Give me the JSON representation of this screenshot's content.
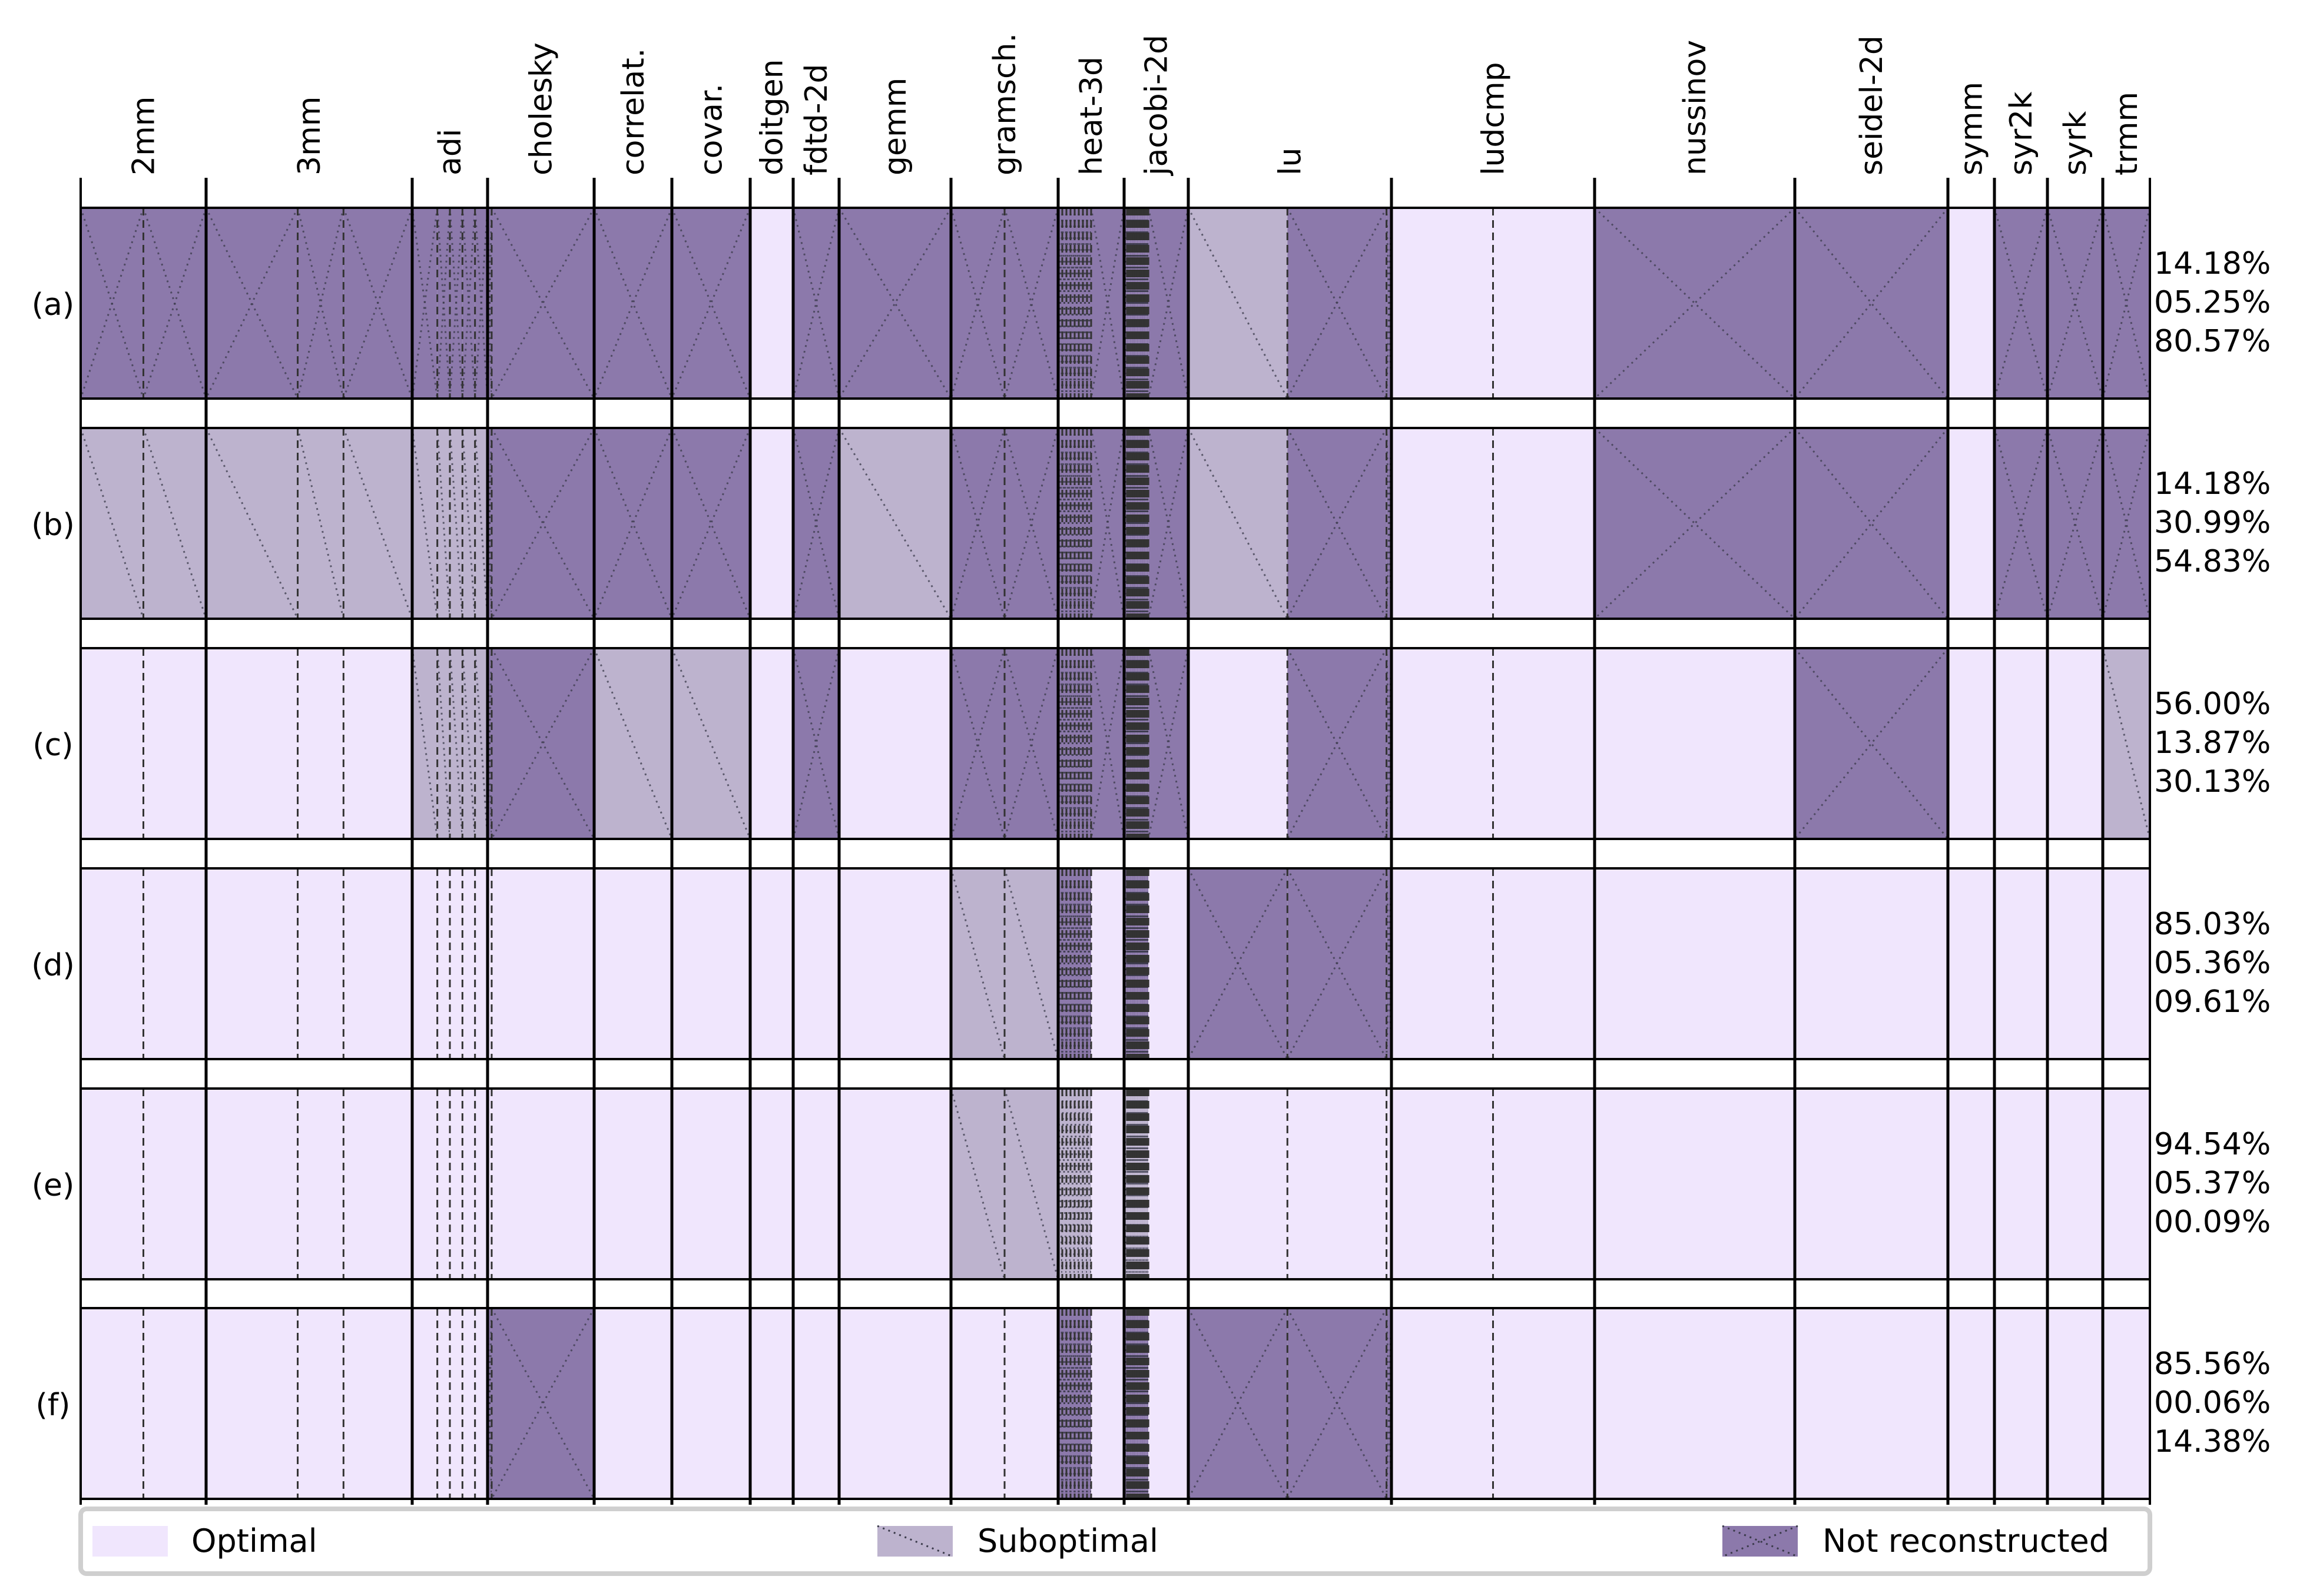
{
  "chart_data": {
    "type": "heatmap",
    "subtype": "segmented-categorical-strips",
    "columns": [
      {
        "label": "2mm",
        "widths": [
          1,
          1
        ]
      },
      {
        "label": "3mm",
        "widths": [
          4,
          2,
          3
        ]
      },
      {
        "label": "adi",
        "widths": [
          2,
          1,
          1,
          1,
          1
        ]
      },
      {
        "label": "cholesky",
        "widths": [
          1,
          25
        ]
      },
      {
        "label": "correlat.",
        "widths": [
          1
        ]
      },
      {
        "label": "covar.",
        "widths": [
          1
        ]
      },
      {
        "label": "doitgen",
        "widths": [
          1
        ]
      },
      {
        "label": "fdtd-2d",
        "widths": [
          1
        ]
      },
      {
        "label": "gemm",
        "widths": [
          1
        ]
      },
      {
        "label": "gramsch.",
        "widths": [
          1,
          1
        ]
      },
      {
        "label": "heat-3d",
        "widths": [
          1,
          1,
          1,
          1,
          1,
          1,
          1,
          1,
          8
        ]
      },
      {
        "label": "jacobi-2d",
        "widths": [
          2,
          1,
          1,
          1,
          1,
          1,
          1,
          1,
          1,
          1,
          1,
          1,
          1,
          1,
          1,
          1,
          28
        ]
      },
      {
        "label": "lu",
        "widths": [
          1,
          1,
          0.05
        ]
      },
      {
        "label": "ludcmp",
        "widths": [
          1,
          1
        ]
      },
      {
        "label": "nussinov",
        "widths": [
          1
        ]
      },
      {
        "label": "seidel-2d",
        "widths": [
          1
        ]
      },
      {
        "label": "symm",
        "widths": [
          1
        ]
      },
      {
        "label": "syr2k",
        "widths": [
          1
        ]
      },
      {
        "label": "syrk",
        "widths": [
          1
        ]
      },
      {
        "label": "trmm",
        "widths": [
          1
        ]
      }
    ],
    "rows": [
      {
        "label": "(a)",
        "percentages": [
          "14.18%",
          "05.25%",
          "80.57%"
        ],
        "states": [
          [
            "N",
            "N"
          ],
          [
            "N",
            "N",
            "N"
          ],
          [
            "N",
            "N",
            "N",
            "N",
            "N"
          ],
          [
            "N",
            "N"
          ],
          [
            "N"
          ],
          [
            "N"
          ],
          [
            "O"
          ],
          [
            "N"
          ],
          [
            "N"
          ],
          [
            "N",
            "N"
          ],
          [
            "N",
            "N",
            "N",
            "N",
            "N",
            "N",
            "N",
            "N",
            "N"
          ],
          [
            "N",
            "N",
            "N",
            "N",
            "N",
            "N",
            "N",
            "N",
            "N",
            "N",
            "N",
            "N",
            "N",
            "N",
            "N",
            "N",
            "N"
          ],
          [
            "S",
            "N",
            "N"
          ],
          [
            "O",
            "O"
          ],
          [
            "N"
          ],
          [
            "N"
          ],
          [
            "O"
          ],
          [
            "N"
          ],
          [
            "N"
          ],
          [
            "N"
          ]
        ]
      },
      {
        "label": "(b)",
        "percentages": [
          "14.18%",
          "30.99%",
          "54.83%"
        ],
        "states": [
          [
            "S",
            "S"
          ],
          [
            "S",
            "S",
            "S"
          ],
          [
            "S",
            "S",
            "S",
            "S",
            "S"
          ],
          [
            "N",
            "N"
          ],
          [
            "N"
          ],
          [
            "N"
          ],
          [
            "O"
          ],
          [
            "N"
          ],
          [
            "S"
          ],
          [
            "N",
            "N"
          ],
          [
            "N",
            "N",
            "N",
            "N",
            "N",
            "N",
            "N",
            "N",
            "N"
          ],
          [
            "N",
            "N",
            "N",
            "N",
            "N",
            "N",
            "N",
            "N",
            "N",
            "N",
            "N",
            "N",
            "N",
            "N",
            "N",
            "N",
            "N"
          ],
          [
            "S",
            "N",
            "N"
          ],
          [
            "O",
            "O"
          ],
          [
            "N"
          ],
          [
            "N"
          ],
          [
            "O"
          ],
          [
            "N"
          ],
          [
            "N"
          ],
          [
            "N"
          ]
        ]
      },
      {
        "label": "(c)",
        "percentages": [
          "56.00%",
          "13.87%",
          "30.13%"
        ],
        "states": [
          [
            "O",
            "O"
          ],
          [
            "O",
            "O",
            "O"
          ],
          [
            "S",
            "S",
            "S",
            "S",
            "S"
          ],
          [
            "N",
            "N"
          ],
          [
            "S"
          ],
          [
            "S"
          ],
          [
            "O"
          ],
          [
            "N"
          ],
          [
            "O"
          ],
          [
            "N",
            "N"
          ],
          [
            "N",
            "N",
            "N",
            "N",
            "N",
            "N",
            "N",
            "N",
            "N"
          ],
          [
            "N",
            "N",
            "N",
            "N",
            "N",
            "N",
            "N",
            "N",
            "N",
            "N",
            "N",
            "N",
            "N",
            "N",
            "N",
            "N",
            "N"
          ],
          [
            "O",
            "N",
            "N"
          ],
          [
            "O",
            "O"
          ],
          [
            "O"
          ],
          [
            "N"
          ],
          [
            "O"
          ],
          [
            "O"
          ],
          [
            "O"
          ],
          [
            "S"
          ]
        ]
      },
      {
        "label": "(d)",
        "percentages": [
          "85.03%",
          "05.36%",
          "09.61%"
        ],
        "states": [
          [
            "O",
            "O"
          ],
          [
            "O",
            "O",
            "O"
          ],
          [
            "O",
            "O",
            "O",
            "O",
            "O"
          ],
          [
            "O",
            "O"
          ],
          [
            "O"
          ],
          [
            "O"
          ],
          [
            "O"
          ],
          [
            "O"
          ],
          [
            "O"
          ],
          [
            "S",
            "S"
          ],
          [
            "N",
            "N",
            "N",
            "N",
            "N",
            "N",
            "N",
            "N",
            "O"
          ],
          [
            "N",
            "N",
            "N",
            "N",
            "N",
            "N",
            "N",
            "N",
            "N",
            "N",
            "N",
            "N",
            "N",
            "N",
            "N",
            "N",
            "O"
          ],
          [
            "N",
            "N",
            "N"
          ],
          [
            "O",
            "O"
          ],
          [
            "O"
          ],
          [
            "O"
          ],
          [
            "O"
          ],
          [
            "O"
          ],
          [
            "O"
          ],
          [
            "O"
          ]
        ]
      },
      {
        "label": "(e)",
        "percentages": [
          "94.54%",
          "05.37%",
          "00.09%"
        ],
        "states": [
          [
            "O",
            "O"
          ],
          [
            "O",
            "O",
            "O"
          ],
          [
            "O",
            "O",
            "O",
            "O",
            "O"
          ],
          [
            "O",
            "O"
          ],
          [
            "O"
          ],
          [
            "O"
          ],
          [
            "O"
          ],
          [
            "O"
          ],
          [
            "O"
          ],
          [
            "S",
            "S"
          ],
          [
            "S",
            "S",
            "S",
            "S",
            "S",
            "S",
            "S",
            "S",
            "O"
          ],
          [
            "S",
            "S",
            "S",
            "S",
            "S",
            "S",
            "S",
            "S",
            "S",
            "S",
            "S",
            "S",
            "S",
            "S",
            "S",
            "S",
            "O"
          ],
          [
            "O",
            "O",
            "O"
          ],
          [
            "O",
            "O"
          ],
          [
            "O"
          ],
          [
            "O"
          ],
          [
            "O"
          ],
          [
            "O"
          ],
          [
            "O"
          ],
          [
            "O"
          ]
        ]
      },
      {
        "label": "(f)",
        "percentages": [
          "85.56%",
          "00.06%",
          "14.38%"
        ],
        "states": [
          [
            "O",
            "O"
          ],
          [
            "O",
            "O",
            "O"
          ],
          [
            "O",
            "O",
            "O",
            "O",
            "O"
          ],
          [
            "N",
            "N"
          ],
          [
            "O"
          ],
          [
            "O"
          ],
          [
            "O"
          ],
          [
            "O"
          ],
          [
            "O"
          ],
          [
            "O",
            "O"
          ],
          [
            "N",
            "N",
            "N",
            "N",
            "N",
            "N",
            "N",
            "N",
            "O"
          ],
          [
            "N",
            "N",
            "N",
            "N",
            "N",
            "N",
            "N",
            "N",
            "N",
            "N",
            "N",
            "N",
            "N",
            "N",
            "N",
            "N",
            "O"
          ],
          [
            "N",
            "N",
            "N"
          ],
          [
            "O",
            "O"
          ],
          [
            "O"
          ],
          [
            "O"
          ],
          [
            "O"
          ],
          [
            "O"
          ],
          [
            "O"
          ],
          [
            "O"
          ]
        ]
      }
    ],
    "legend": {
      "placement": "bottom",
      "items": [
        {
          "key": "O",
          "label": "Optimal",
          "color": "#f0e6fd",
          "hatch": "none"
        },
        {
          "key": "S",
          "label": "Suboptimal",
          "color": "#bdb3ce",
          "hatch": "diagonal"
        },
        {
          "key": "N",
          "label": "Not reconstructed",
          "color": "#8c79ab",
          "hatch": "cross"
        }
      ]
    },
    "grid": false
  }
}
